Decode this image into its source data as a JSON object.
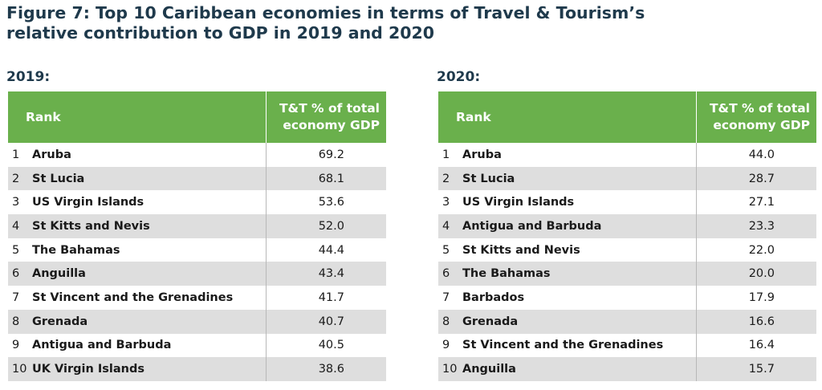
{
  "title_line1": "Figure 7: Top 10 Caribbean economies in terms of Travel & Tourism’s",
  "title_line2": "relative contribution to GDP in 2019 and 2020",
  "colors": {
    "header_green": "#6ab04c",
    "title_navy": "#1f3a4c",
    "row_stripe": "#dedede"
  },
  "chart_data": [
    {
      "type": "table",
      "year_label": "2019:",
      "header_rank": "Rank",
      "header_value_line1": "T&T % of total",
      "header_value_line2": "economy GDP",
      "rows": [
        {
          "rank": "1",
          "country": "Aruba",
          "value": "69.2"
        },
        {
          "rank": "2",
          "country": "St Lucia",
          "value": "68.1"
        },
        {
          "rank": "3",
          "country": "US Virgin Islands",
          "value": "53.6"
        },
        {
          "rank": "4",
          "country": "St Kitts and Nevis",
          "value": "52.0"
        },
        {
          "rank": "5",
          "country": "The Bahamas",
          "value": "44.4"
        },
        {
          "rank": "6",
          "country": "Anguilla",
          "value": "43.4"
        },
        {
          "rank": "7",
          "country": "St Vincent and the Grenadines",
          "value": "41.7"
        },
        {
          "rank": "8",
          "country": "Grenada",
          "value": "40.7"
        },
        {
          "rank": "9",
          "country": "Antigua and Barbuda",
          "value": "40.5"
        },
        {
          "rank": "10",
          "country": "UK Virgin Islands",
          "value": "38.6"
        }
      ]
    },
    {
      "type": "table",
      "year_label": "2020:",
      "header_rank": "Rank",
      "header_value_line1": "T&T % of total",
      "header_value_line2": "economy GDP",
      "rows": [
        {
          "rank": "1",
          "country": "Aruba",
          "value": "44.0"
        },
        {
          "rank": "2",
          "country": "St Lucia",
          "value": "28.7"
        },
        {
          "rank": "3",
          "country": "US Virgin Islands",
          "value": "27.1"
        },
        {
          "rank": "4",
          "country": "Antigua and Barbuda",
          "value": "23.3"
        },
        {
          "rank": "5",
          "country": "St Kitts and Nevis",
          "value": "22.0"
        },
        {
          "rank": "6",
          "country": "The Bahamas",
          "value": "20.0"
        },
        {
          "rank": "7",
          "country": "Barbados",
          "value": "17.9"
        },
        {
          "rank": "8",
          "country": "Grenada",
          "value": "16.6"
        },
        {
          "rank": "9",
          "country": "St Vincent and the Grenadines",
          "value": "16.4"
        },
        {
          "rank": "10",
          "country": "Anguilla",
          "value": "15.7"
        }
      ]
    }
  ]
}
